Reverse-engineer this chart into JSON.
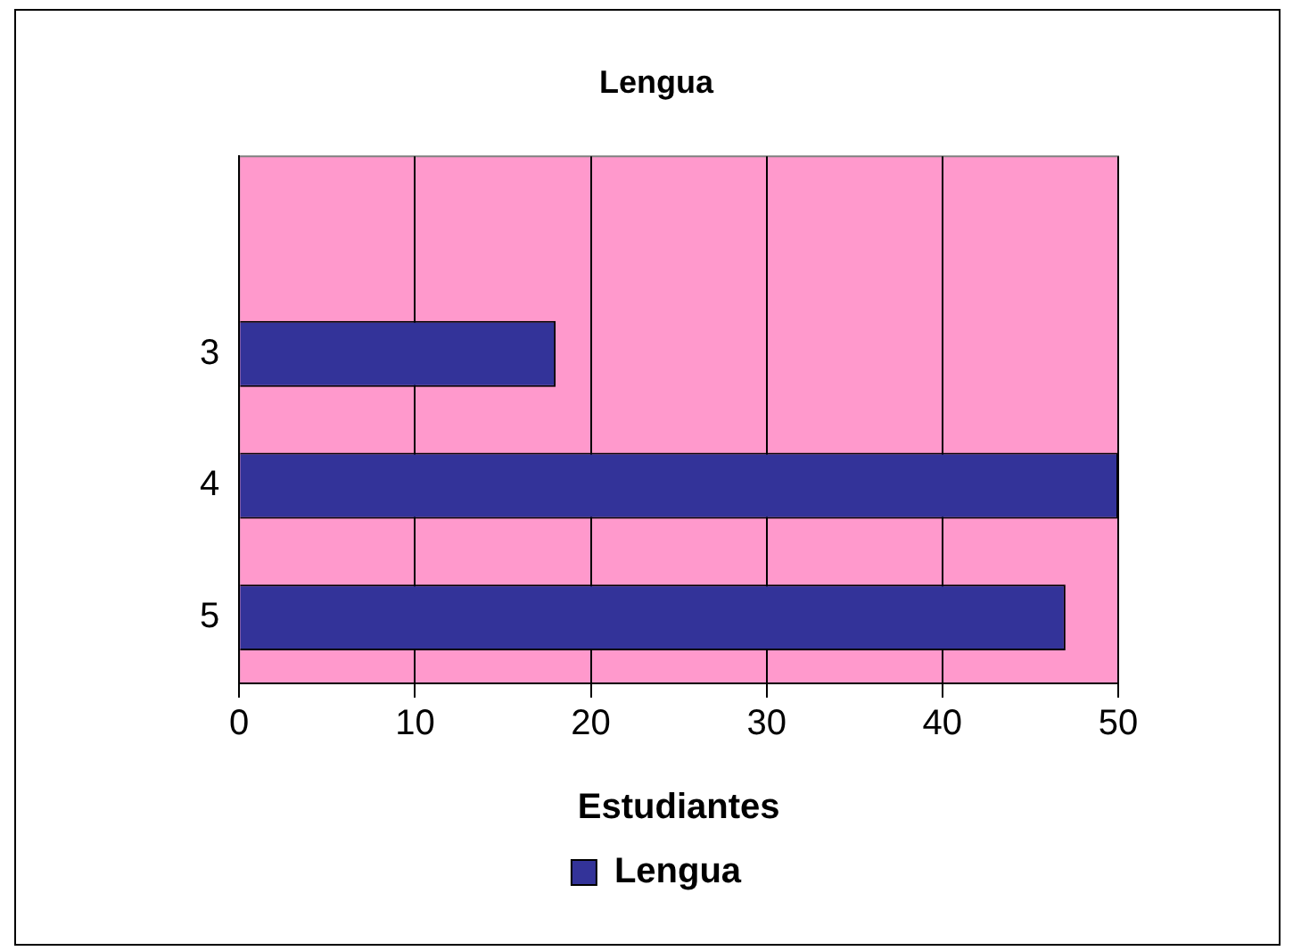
{
  "chart_data": {
    "type": "bar",
    "orientation": "horizontal",
    "title": "Lengua",
    "xlabel": "Estudiantes",
    "categories": [
      null,
      "3",
      "4",
      "5"
    ],
    "series": [
      {
        "name": "Lengua",
        "color": "#333399",
        "values": [
          null,
          18,
          50,
          47
        ]
      }
    ],
    "xlim": [
      0,
      50
    ],
    "xticks": [
      0,
      10,
      20,
      30,
      40,
      50
    ],
    "grid": "x",
    "legend": "bottom"
  }
}
